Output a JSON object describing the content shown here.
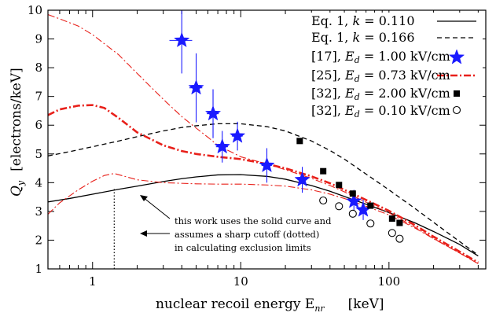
{
  "chart_data": {
    "type": "line",
    "title": "",
    "xlabel": "nuclear recoil energy E",
    "xlabel_sub": "nr",
    "xunit": "[keV]",
    "ylabel_q": "Q",
    "ylabel_sub": "y",
    "yunit": "[electrons/keV]",
    "xscale": "log",
    "xlim": [
      0.5,
      450
    ],
    "ylim": [
      1,
      10
    ],
    "xticks": [
      1,
      10,
      100
    ],
    "xtick_labels": [
      "1",
      "10",
      "100"
    ],
    "yticks": [
      1,
      2,
      3,
      4,
      5,
      6,
      7,
      8,
      9,
      10
    ],
    "ytick_labels": [
      "1",
      "2",
      "3",
      "4",
      "5",
      "6",
      "7",
      "8",
      "9",
      "10"
    ],
    "legend_position": "top-right",
    "legend": [
      {
        "text": "Eq. 1, k = 0.110",
        "marker": "solid-line"
      },
      {
        "text": "Eq. 1, k = 0.166",
        "marker": "dashed-line"
      },
      {
        "text": "[17], Ed = 1.00 kV/cm",
        "marker": "blue-star"
      },
      {
        "text": "[25], Ed = 0.73 kV/cm",
        "marker": "red-dashdot"
      },
      {
        "text": "[32], Ed = 2.00 kV/cm",
        "marker": "filled-square"
      },
      {
        "text": "[32], Ed = 0.10 kV/cm",
        "marker": "open-circle"
      }
    ],
    "series": [
      {
        "name": "Eq. 1, k = 0.110",
        "style": "solid",
        "color": "#000000",
        "x": [
          0.5,
          0.7,
          1,
          1.5,
          2,
          3,
          4,
          5,
          7,
          10,
          15,
          20,
          30,
          40,
          50,
          70,
          100,
          150,
          200,
          300,
          400
        ],
        "y": [
          3.33,
          3.45,
          3.6,
          3.77,
          3.88,
          4.04,
          4.14,
          4.2,
          4.27,
          4.28,
          4.22,
          4.12,
          3.9,
          3.7,
          3.52,
          3.25,
          2.96,
          2.6,
          2.3,
          1.85,
          1.45
        ]
      },
      {
        "name": "Eq. 1, k = 0.166",
        "style": "dashed",
        "color": "#000000",
        "x": [
          0.5,
          0.7,
          1,
          1.5,
          2,
          3,
          4,
          5,
          7,
          10,
          15,
          20,
          30,
          40,
          50,
          70,
          100,
          150,
          200,
          300,
          400
        ],
        "y": [
          4.93,
          5.08,
          5.25,
          5.45,
          5.6,
          5.8,
          5.92,
          5.98,
          6.05,
          6.05,
          5.95,
          5.8,
          5.45,
          5.12,
          4.82,
          4.3,
          3.75,
          3.1,
          2.62,
          1.95,
          1.48
        ]
      },
      {
        "name": "[25], Ed = 0.73 kV/cm",
        "style": "dashdot-thick",
        "color": "#e8201a",
        "x": [
          0.5,
          0.6,
          0.8,
          1,
          1.2,
          1.5,
          2,
          3,
          4,
          5,
          7,
          10,
          15,
          20,
          30,
          40,
          50,
          70,
          100,
          150,
          200,
          300,
          400
        ],
        "y": [
          6.35,
          6.55,
          6.68,
          6.7,
          6.6,
          6.25,
          5.75,
          5.3,
          5.1,
          5.0,
          4.9,
          4.82,
          4.65,
          4.5,
          4.22,
          3.98,
          3.75,
          3.4,
          3.02,
          2.52,
          2.12,
          1.6,
          1.22
        ]
      },
      {
        "name": "[25] upper band",
        "style": "dashdot-thin",
        "color": "#e8201a",
        "x": [
          0.5,
          0.6,
          0.8,
          1,
          1.5,
          2,
          3,
          4,
          5,
          6,
          7,
          8,
          10,
          15,
          20,
          30,
          40,
          50,
          70,
          100,
          150,
          200,
          300,
          400
        ],
        "y": [
          9.85,
          9.7,
          9.45,
          9.15,
          8.45,
          7.8,
          6.9,
          6.3,
          5.9,
          5.58,
          5.3,
          5.15,
          4.9,
          4.65,
          4.45,
          4.15,
          3.9,
          3.68,
          3.32,
          2.95,
          2.45,
          2.06,
          1.55,
          1.18
        ]
      },
      {
        "name": "[25] lower band",
        "style": "dashdot-thin",
        "color": "#e8201a",
        "x": [
          0.5,
          0.6,
          0.8,
          1,
          1.2,
          1.4,
          1.7,
          2,
          3,
          5,
          7,
          10,
          15,
          20,
          30,
          40,
          50,
          70,
          100,
          150,
          200,
          300,
          400
        ],
        "y": [
          2.9,
          3.3,
          3.75,
          4.05,
          4.25,
          4.32,
          4.2,
          4.1,
          4.0,
          3.96,
          3.95,
          3.95,
          3.92,
          3.88,
          3.75,
          3.6,
          3.45,
          3.18,
          2.88,
          2.42,
          2.05,
          1.55,
          1.18
        ]
      },
      {
        "name": "[17], Ed = 1.00 kV/cm",
        "type": "scatter",
        "marker": "star",
        "color": "#1a1aff",
        "x": [
          4.0,
          5.0,
          6.5,
          7.5,
          9.5,
          15,
          26,
          58,
          67
        ],
        "y": [
          8.95,
          7.3,
          6.4,
          5.25,
          5.62,
          4.6,
          4.1,
          3.35,
          3.05
        ],
        "yerr_low": [
          1.15,
          1.2,
          0.85,
          0.55,
          0.5,
          0.6,
          0.45,
          0.4,
          0.35
        ],
        "yerr_high": [
          1.15,
          1.2,
          0.85,
          0.55,
          0.5,
          0.6,
          0.45,
          0.4,
          0.35
        ],
        "xerr_low": [
          0.7,
          0.5,
          0.6,
          0.7,
          0.8,
          1.2,
          1.8,
          3,
          3
        ],
        "xerr_high": [
          0.7,
          0.5,
          0.6,
          0.7,
          0.8,
          1.2,
          1.8,
          3,
          3
        ]
      },
      {
        "name": "[32], Ed = 2.00 kV/cm",
        "type": "scatter",
        "marker": "square",
        "color": "#000000",
        "x": [
          25,
          36,
          46,
          57,
          75,
          105,
          118
        ],
        "y": [
          5.45,
          4.4,
          3.92,
          3.62,
          3.2,
          2.75,
          2.6
        ]
      },
      {
        "name": "[32], Ed = 0.10 kV/cm",
        "type": "scatter",
        "marker": "circle",
        "color": "#000000",
        "x": [
          36,
          46,
          57,
          75,
          105,
          118
        ],
        "y": [
          3.38,
          3.18,
          2.92,
          2.58,
          2.25,
          2.05
        ]
      },
      {
        "name": "cutoff",
        "style": "dotted",
        "color": "#000000",
        "x": [
          1.4,
          1.4
        ],
        "y": [
          1,
          3.82
        ]
      }
    ],
    "annotations": [
      {
        "lines": [
          "this work uses the solid curve and",
          "assumes a sharp cutoff (dotted)",
          "in calculating exclusion limits"
        ]
      }
    ]
  }
}
